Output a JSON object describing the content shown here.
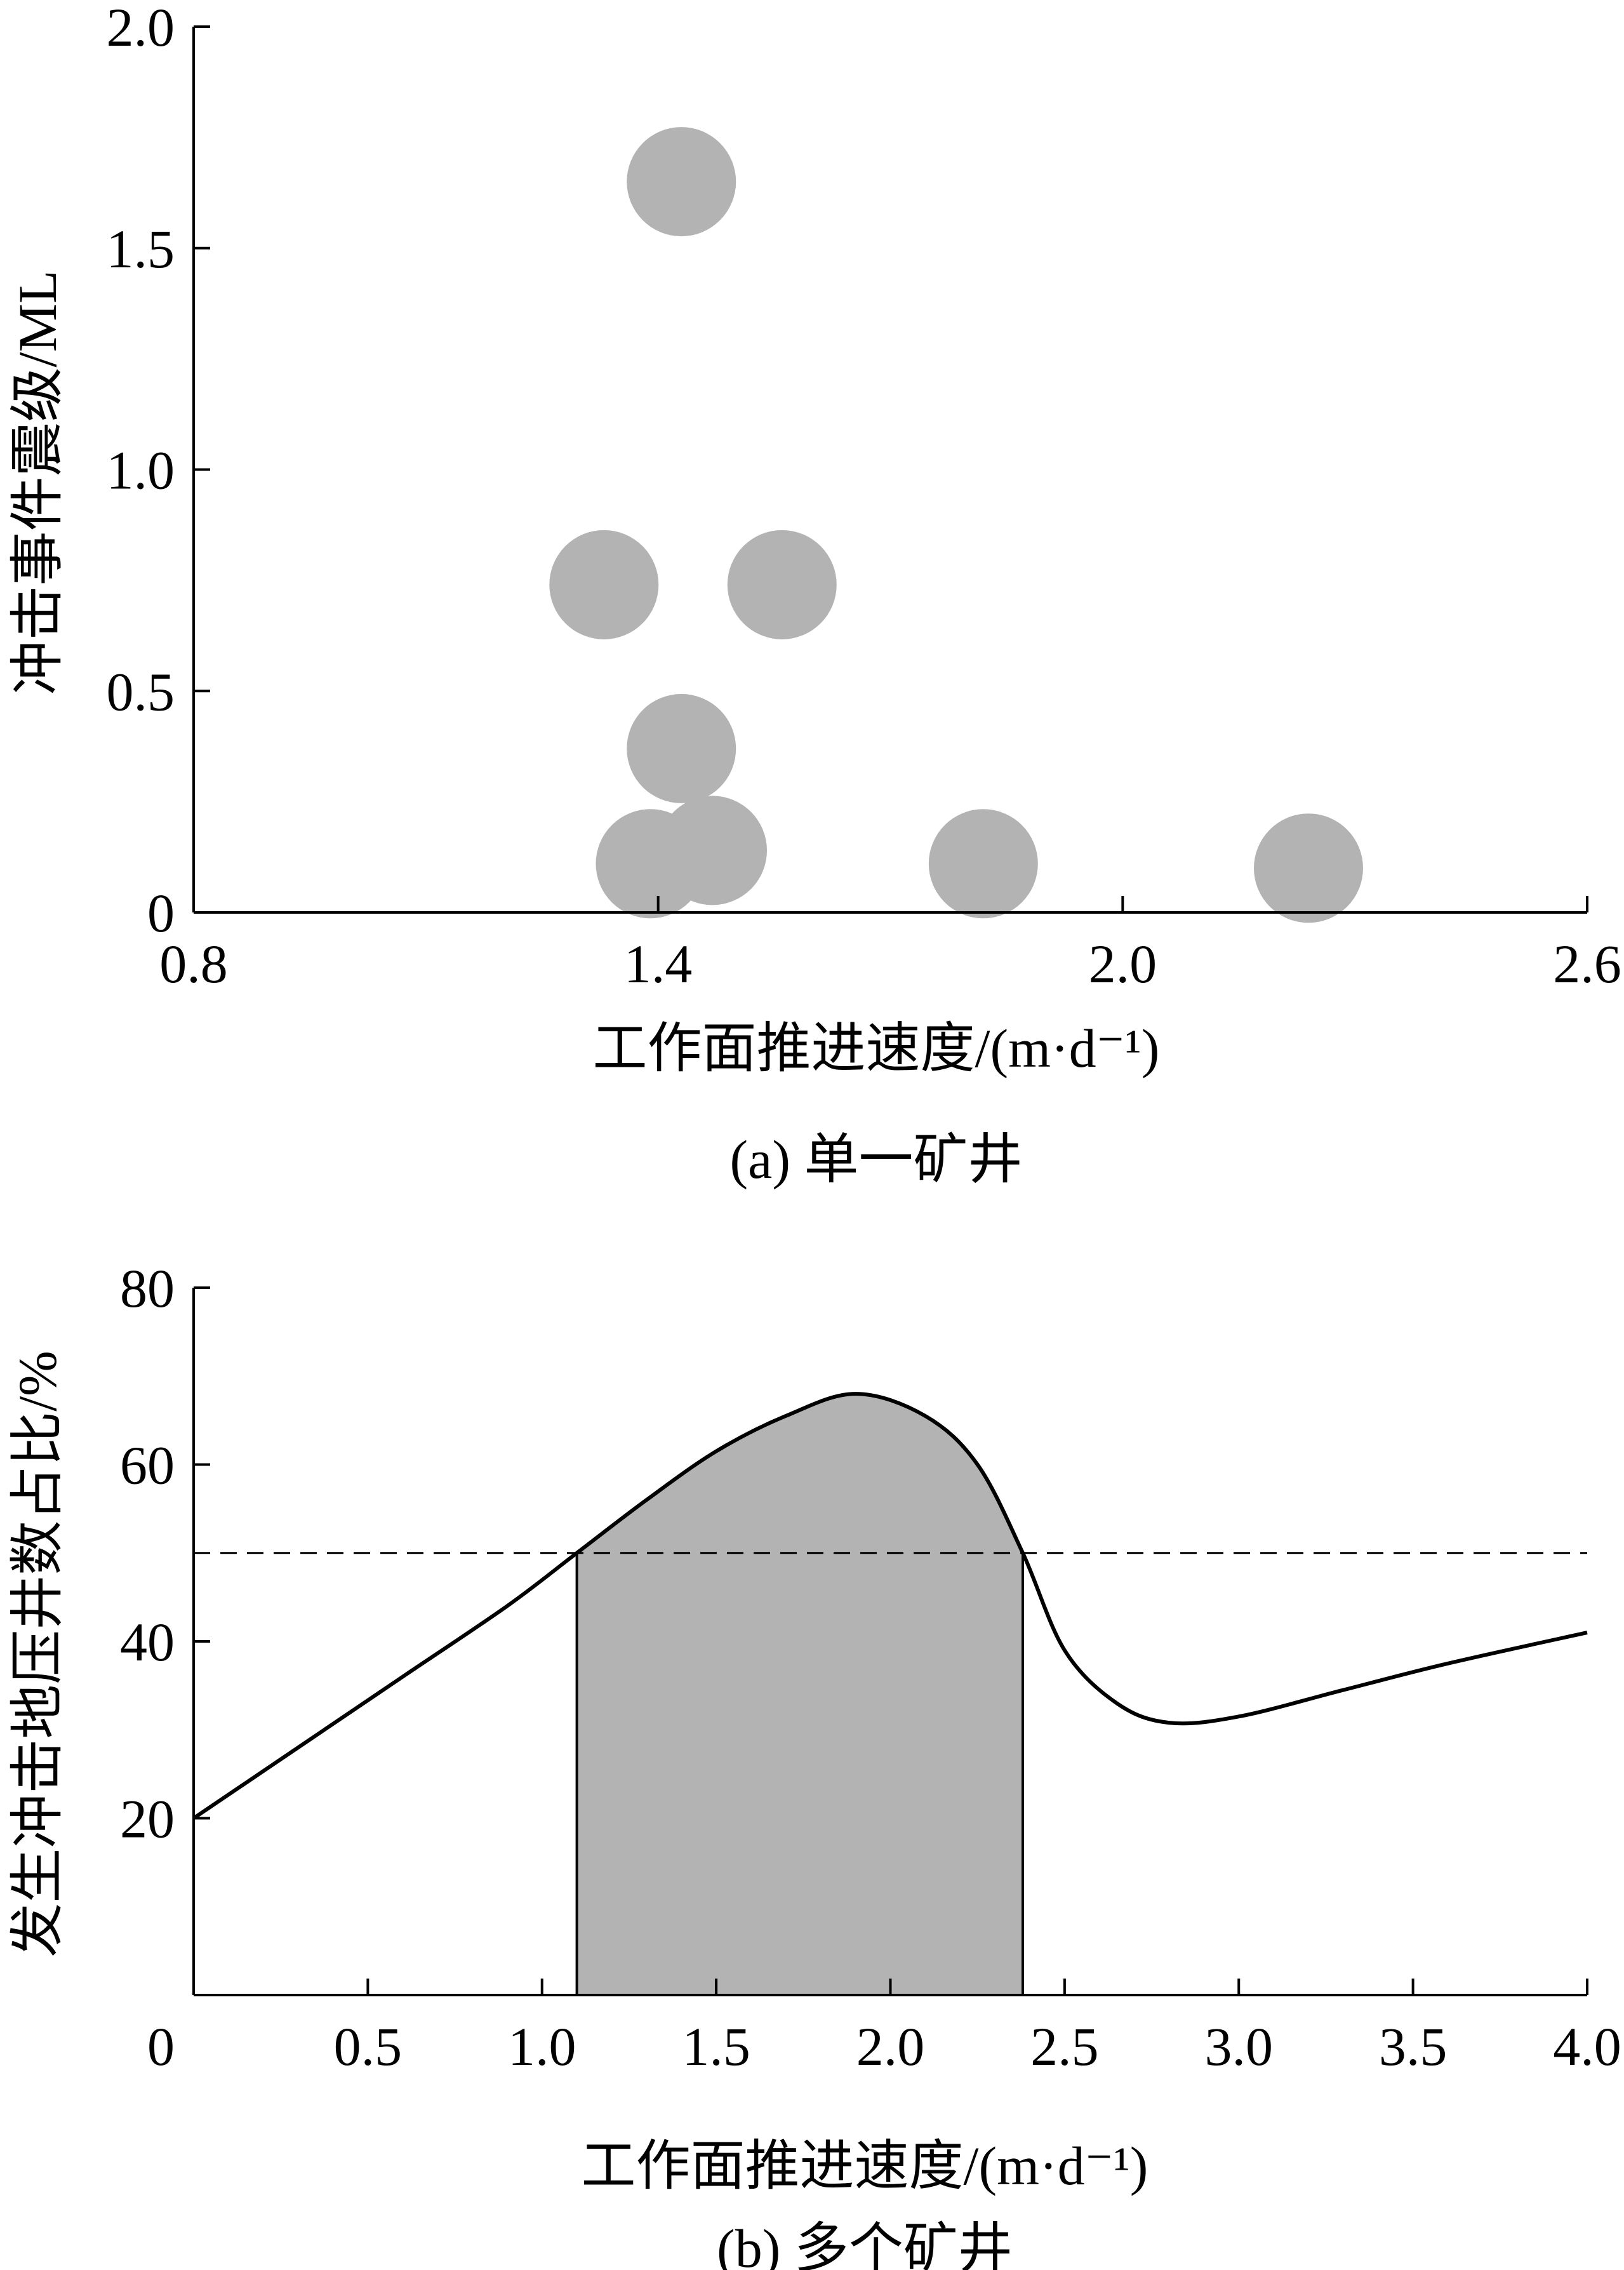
{
  "chart_data": [
    {
      "type": "scatter",
      "caption": "(a)  单一矿井",
      "xlabel": "工作面推进速度/(m·d⁻¹)",
      "ylabel": "冲击事件震级/ML",
      "xlim": [
        0.8,
        2.6
      ],
      "ylim": [
        0,
        2.0
      ],
      "xticks": [
        "0.8",
        "1.4",
        "2.0",
        "2.6"
      ],
      "yticks": [
        "0",
        "0.5",
        "1.0",
        "1.5",
        "2.0"
      ],
      "grid": false,
      "marker_color": "#b3b3b3",
      "points": [
        {
          "x": 1.43,
          "y": 1.65
        },
        {
          "x": 1.33,
          "y": 0.74
        },
        {
          "x": 1.56,
          "y": 0.74
        },
        {
          "x": 1.43,
          "y": 0.37
        },
        {
          "x": 1.39,
          "y": 0.11
        },
        {
          "x": 1.47,
          "y": 0.14
        },
        {
          "x": 1.82,
          "y": 0.11
        },
        {
          "x": 2.24,
          "y": 0.1
        }
      ]
    },
    {
      "type": "line",
      "caption": "(b)  多个矿井",
      "xlabel": "工作面推进速度/(m·d⁻¹)",
      "ylabel": "发生冲击地压井数占比/%",
      "xlim": [
        0,
        4.0
      ],
      "ylim": [
        0,
        80
      ],
      "xticks": [
        "0",
        "0.5",
        "1.0",
        "1.5",
        "2.0",
        "2.5",
        "3.0",
        "3.5",
        "4.0"
      ],
      "yticks": [
        "20",
        "40",
        "60",
        "80"
      ],
      "grid": false,
      "threshold": 50,
      "shaded_range": [
        1.1,
        2.38
      ],
      "fill_color": "#b3b3b3",
      "series": [
        {
          "x": [
            0,
            0.3,
            0.6,
            0.9,
            1.1,
            1.3,
            1.5,
            1.7,
            1.9,
            2.1,
            2.25,
            2.38,
            2.5,
            2.65,
            2.8,
            3.0,
            3.3,
            3.6,
            4.0
          ],
          "y": [
            20,
            28,
            36,
            44,
            50,
            56,
            61.5,
            65.5,
            68,
            65.5,
            60,
            50,
            39,
            33,
            30.8,
            31.5,
            34.5,
            37.5,
            41
          ]
        }
      ]
    }
  ]
}
